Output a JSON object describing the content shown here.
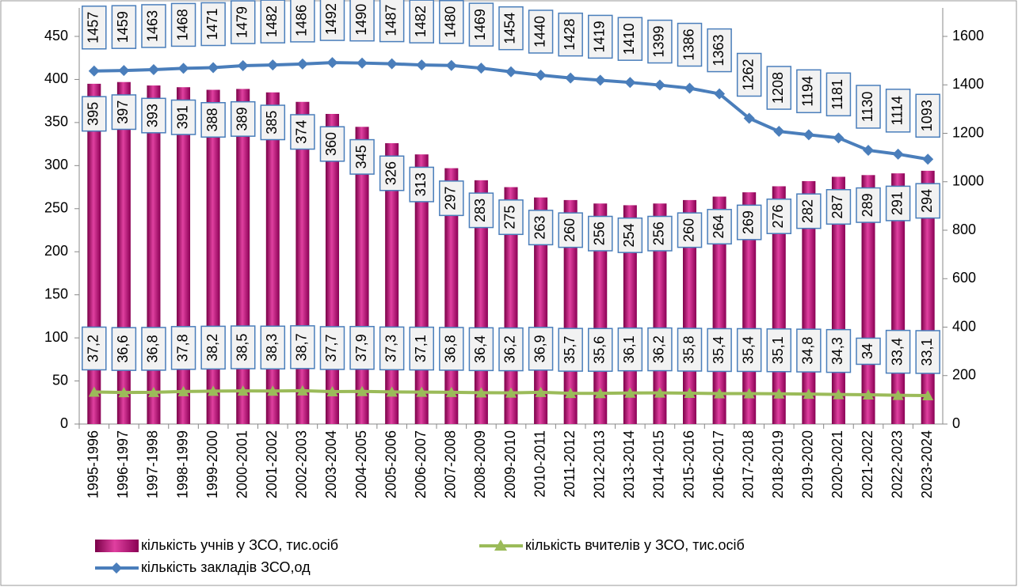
{
  "chart_data": {
    "type": "bar",
    "categories": [
      "1995-1996",
      "1996-1997",
      "1997-1998",
      "1998-1999",
      "1999-2000",
      "2000-2001",
      "2001-2002",
      "2002-2003",
      "2003-2004",
      "2004-2005",
      "2005-2006",
      "2006-2007",
      "2007-2008",
      "2008-2009",
      "2009-2010",
      "2010-2011",
      "2011-2012",
      "2012-2013",
      "2013-2014",
      "2014-2015",
      "2015-2016",
      "2016-2017",
      "2017-2018",
      "2018-2019",
      "2019-2020",
      "2020-2021",
      "2021-2022",
      "2022-2023",
      "2023-2024"
    ],
    "series": [
      {
        "name": "кількість учнів у ЗСО, тис.осіб",
        "type": "bar",
        "color": "#c0117a",
        "values": [
          395,
          397,
          393,
          391,
          388,
          389,
          385,
          374,
          360,
          345,
          326,
          313,
          297,
          283,
          275,
          263,
          260,
          256,
          254,
          256,
          260,
          264,
          269,
          276,
          282,
          287,
          289,
          291,
          294
        ]
      },
      {
        "name": "кількість вчителів у ЗСО, тис.осіб",
        "type": "line",
        "marker": "triangle",
        "color": "#9bbb59",
        "values": [
          37.2,
          36.6,
          36.8,
          37.8,
          38.2,
          38.5,
          38.3,
          38.7,
          37.7,
          37.9,
          37.3,
          37.1,
          36.8,
          36.4,
          36.2,
          36.9,
          35.7,
          35.6,
          36.1,
          36.2,
          35.8,
          35.4,
          35.4,
          35.1,
          34.8,
          34.3,
          34,
          33.4,
          33.1
        ],
        "value_labels": [
          "37,2",
          "36,6",
          "36,8",
          "37,8",
          "38,2",
          "38,5",
          "38,3",
          "38,7",
          "37,7",
          "37,9",
          "37,3",
          "37,1",
          "36,8",
          "36,4",
          "36,2",
          "36,9",
          "35,7",
          "35,6",
          "36,1",
          "36,2",
          "35,8",
          "35,4",
          "35,4",
          "35,1",
          "34,8",
          "34,3",
          "34",
          "33,4",
          "33,1"
        ]
      },
      {
        "name": "кількість закладів ЗСО,од",
        "type": "line",
        "marker": "diamond",
        "color": "#4a7ebb",
        "axis": "y2",
        "values": [
          1457,
          1459,
          1463,
          1468,
          1471,
          1479,
          1482,
          1486,
          1492,
          1490,
          1487,
          1482,
          1480,
          1469,
          1454,
          1440,
          1428,
          1419,
          1410,
          1399,
          1386,
          1363,
          1262,
          1208,
          1194,
          1181,
          1130,
          1114,
          1093
        ]
      }
    ],
    "ylim": [
      0,
      450
    ],
    "yticks": [
      0,
      50,
      100,
      150,
      200,
      250,
      300,
      350,
      400,
      450
    ],
    "y2lim": [
      0,
      1600
    ],
    "y2ticks": [
      0,
      200,
      400,
      600,
      800,
      1000,
      1200,
      1400,
      1600
    ],
    "grid": false
  }
}
